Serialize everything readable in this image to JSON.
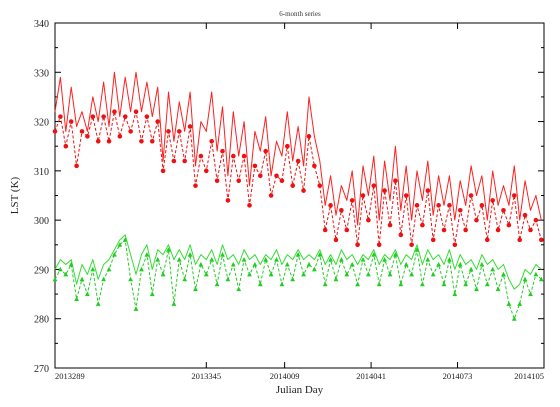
{
  "chart_data": {
    "type": "line",
    "title": "",
    "subtitle": "6-month series",
    "xlabel": "Julian Day",
    "ylabel": "LST (K)",
    "ylim": [
      270,
      340
    ],
    "y_ticks": [
      270,
      280,
      290,
      300,
      310,
      320,
      330,
      340
    ],
    "x_ticks": [
      {
        "value": 0,
        "label": "2013289"
      },
      {
        "value": 56,
        "label": "2013345"
      },
      {
        "value": 85,
        "label": "2014009"
      },
      {
        "value": 117,
        "label": "2014041"
      },
      {
        "value": 149,
        "label": "2014073"
      },
      {
        "value": 181,
        "label": "2014105"
      }
    ],
    "xlim": [
      0,
      181
    ],
    "grid": false,
    "series": [
      {
        "color": "#ff2020",
        "style": "solid",
        "marker": "none",
        "x": [
          0,
          2,
          4,
          6,
          8,
          10,
          12,
          14,
          16,
          18,
          20,
          22,
          24,
          26,
          28,
          30,
          32,
          34,
          36,
          38,
          40,
          42,
          44,
          46,
          48,
          50,
          52,
          54,
          56,
          58,
          60,
          62,
          64,
          66,
          68,
          70,
          72,
          74,
          76,
          78,
          80,
          82,
          84,
          86,
          88,
          90,
          92,
          94,
          96,
          98,
          100,
          102,
          104,
          106,
          108,
          110,
          112,
          114,
          116,
          118,
          120,
          122,
          124,
          126,
          128,
          130,
          132,
          134,
          136,
          138,
          140,
          142,
          144,
          146,
          148,
          150,
          152,
          154,
          156,
          158,
          160,
          162,
          164,
          166,
          168,
          170,
          172,
          174,
          176,
          178,
          180
        ],
        "values": [
          322,
          329,
          318,
          327,
          319,
          322,
          318,
          325,
          320,
          328,
          319,
          330,
          321,
          329,
          322,
          330,
          322,
          328,
          321,
          327,
          312,
          326,
          316,
          324,
          318,
          326,
          311,
          320,
          318,
          326,
          314,
          323,
          309,
          322,
          313,
          320,
          307,
          318,
          314,
          321,
          309,
          316,
          313,
          322,
          312,
          319,
          311,
          325,
          317,
          312,
          303,
          309,
          301,
          307,
          304,
          310,
          299,
          311,
          305,
          313,
          300,
          312,
          304,
          315,
          302,
          311,
          300,
          310,
          304,
          312,
          301,
          309,
          303,
          309,
          300,
          308,
          303,
          311,
          305,
          309,
          300,
          310,
          303,
          307,
          303,
          311,
          300,
          308,
          302,
          305,
          300
        ]
      },
      {
        "color": "#ee1111",
        "style": "dashed",
        "marker": "circle",
        "x": [
          0,
          2,
          4,
          6,
          8,
          10,
          12,
          14,
          16,
          18,
          20,
          22,
          24,
          26,
          28,
          30,
          32,
          34,
          36,
          38,
          40,
          42,
          44,
          46,
          48,
          50,
          52,
          54,
          56,
          58,
          60,
          62,
          64,
          66,
          68,
          70,
          72,
          74,
          76,
          78,
          80,
          82,
          84,
          86,
          88,
          90,
          92,
          94,
          96,
          98,
          100,
          102,
          104,
          106,
          108,
          110,
          112,
          114,
          116,
          118,
          120,
          122,
          124,
          126,
          128,
          130,
          132,
          134,
          136,
          138,
          140,
          142,
          144,
          146,
          148,
          150,
          152,
          154,
          156,
          158,
          160,
          162,
          164,
          166,
          168,
          170,
          172,
          174,
          176,
          178,
          180
        ],
        "values": [
          318,
          321,
          315,
          320,
          311,
          318,
          317,
          321,
          316,
          321,
          316,
          322,
          317,
          321,
          318,
          322,
          316,
          321,
          316,
          320,
          310,
          318,
          312,
          318,
          312,
          319,
          307,
          313,
          310,
          316,
          308,
          314,
          304,
          313,
          308,
          313,
          303,
          311,
          309,
          314,
          305,
          309,
          308,
          315,
          307,
          312,
          306,
          317,
          311,
          307,
          298,
          303,
          296,
          302,
          298,
          304,
          295,
          305,
          300,
          307,
          295,
          306,
          299,
          308,
          297,
          305,
          295,
          303,
          299,
          306,
          296,
          303,
          298,
          303,
          295,
          302,
          298,
          305,
          300,
          303,
          296,
          304,
          298,
          302,
          299,
          305,
          296,
          301,
          298,
          300,
          296
        ]
      },
      {
        "color": "#33dd33",
        "style": "solid",
        "marker": "none",
        "x": [
          0,
          2,
          4,
          6,
          8,
          10,
          12,
          14,
          16,
          18,
          20,
          22,
          24,
          26,
          28,
          30,
          32,
          34,
          36,
          38,
          40,
          42,
          44,
          46,
          48,
          50,
          52,
          54,
          56,
          58,
          60,
          62,
          64,
          66,
          68,
          70,
          72,
          74,
          76,
          78,
          80,
          82,
          84,
          86,
          88,
          90,
          92,
          94,
          96,
          98,
          100,
          102,
          104,
          106,
          108,
          110,
          112,
          114,
          116,
          118,
          120,
          122,
          124,
          126,
          128,
          130,
          132,
          134,
          136,
          138,
          140,
          142,
          144,
          146,
          148,
          150,
          152,
          154,
          156,
          158,
          160,
          162,
          164,
          166,
          168,
          170,
          172,
          174,
          176,
          178,
          180
        ],
        "values": [
          290,
          292,
          291,
          292,
          287,
          291,
          289,
          292,
          288,
          291,
          292,
          294,
          296,
          297,
          293,
          289,
          293,
          295,
          290,
          294,
          293,
          295,
          292,
          294,
          292,
          295,
          291,
          293,
          292,
          294,
          291,
          295,
          292,
          293,
          291,
          294,
          292,
          293,
          291,
          293,
          292,
          294,
          291,
          293,
          292,
          294,
          292,
          293,
          292,
          294,
          291,
          293,
          291,
          294,
          292,
          293,
          291,
          293,
          292,
          294,
          291,
          293,
          292,
          294,
          291,
          293,
          292,
          295,
          291,
          294,
          292,
          293,
          291,
          294,
          290,
          293,
          291,
          292,
          290,
          293,
          291,
          292,
          290,
          291,
          288,
          286,
          287,
          290,
          289,
          291,
          290
        ]
      },
      {
        "color": "#22cc22",
        "style": "dashed",
        "marker": "triangle",
        "x": [
          0,
          2,
          4,
          6,
          8,
          10,
          12,
          14,
          16,
          18,
          20,
          22,
          24,
          26,
          28,
          30,
          32,
          34,
          36,
          38,
          40,
          42,
          44,
          46,
          48,
          50,
          52,
          54,
          56,
          58,
          60,
          62,
          64,
          66,
          68,
          70,
          72,
          74,
          76,
          78,
          80,
          82,
          84,
          86,
          88,
          90,
          92,
          94,
          96,
          98,
          100,
          102,
          104,
          106,
          108,
          110,
          112,
          114,
          116,
          118,
          120,
          122,
          124,
          126,
          128,
          130,
          132,
          134,
          136,
          138,
          140,
          142,
          144,
          146,
          148,
          150,
          152,
          154,
          156,
          158,
          160,
          162,
          164,
          166,
          168,
          170,
          172,
          174,
          176,
          178,
          180
        ],
        "values": [
          288,
          290,
          289,
          291,
          284,
          288,
          285,
          290,
          283,
          288,
          290,
          293,
          295,
          296,
          288,
          282,
          290,
          293,
          285,
          292,
          289,
          294,
          283,
          292,
          288,
          293,
          286,
          291,
          289,
          292,
          287,
          293,
          288,
          291,
          286,
          292,
          289,
          291,
          287,
          292,
          289,
          292,
          287,
          291,
          288,
          293,
          289,
          291,
          290,
          293,
          287,
          292,
          288,
          292,
          289,
          291,
          287,
          292,
          289,
          293,
          287,
          292,
          289,
          293,
          287,
          291,
          289,
          294,
          287,
          292,
          289,
          291,
          287,
          292,
          285,
          291,
          287,
          290,
          286,
          291,
          287,
          290,
          286,
          289,
          283,
          280,
          283,
          288,
          285,
          289,
          288
        ]
      }
    ]
  }
}
